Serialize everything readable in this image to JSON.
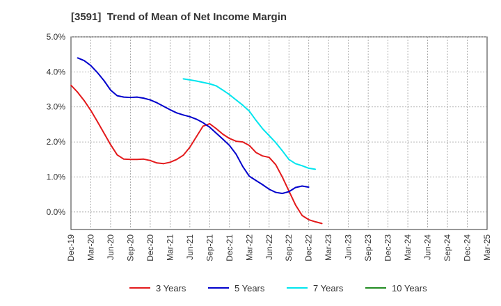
{
  "chart_data": {
    "type": "line",
    "title": "[3591]  Trend of Mean of Net Income Margin",
    "xlabel": "",
    "ylabel": "",
    "x_ticks": [
      "Dec-19",
      "Mar-20",
      "Jun-20",
      "Sep-20",
      "Dec-20",
      "Mar-21",
      "Jun-21",
      "Sep-21",
      "Dec-21",
      "Mar-22",
      "Jun-22",
      "Sep-22",
      "Dec-22",
      "Mar-23",
      "Jun-23",
      "Sep-23",
      "Dec-23",
      "Mar-24",
      "Jun-24",
      "Sep-24",
      "Dec-24",
      "Mar-25"
    ],
    "y_ticks": [
      "5.0%",
      "4.0%",
      "3.0%",
      "2.0%",
      "1.0%",
      "0.0%"
    ],
    "ylim": [
      -0.5,
      5.0
    ],
    "grid": true,
    "legend_position": "bottom",
    "series": [
      {
        "name": "3 Years",
        "color": "#e31a1c",
        "values": [
          3.62,
          3.42,
          3.18,
          2.9,
          2.58,
          2.25,
          1.92,
          1.63,
          1.51,
          1.5,
          1.5,
          1.51,
          1.47,
          1.4,
          1.38,
          1.42,
          1.5,
          1.62,
          1.85,
          2.15,
          2.45,
          2.52,
          2.38,
          2.22,
          2.1,
          2.02,
          2.0,
          1.9,
          1.7,
          1.6,
          1.56,
          1.35,
          1.0,
          0.6,
          0.2,
          -0.1,
          -0.22,
          -0.28,
          -0.33
        ]
      },
      {
        "name": "5 Years",
        "color": "#0000cc",
        "values": [
          null,
          4.4,
          4.32,
          4.18,
          3.98,
          3.75,
          3.48,
          3.32,
          3.28,
          3.27,
          3.28,
          3.25,
          3.2,
          3.12,
          3.02,
          2.92,
          2.83,
          2.77,
          2.72,
          2.65,
          2.55,
          2.42,
          2.25,
          2.08,
          1.9,
          1.65,
          1.3,
          1.02,
          0.9,
          0.78,
          0.65,
          0.56,
          0.53,
          0.58,
          0.7,
          0.74,
          0.71
        ]
      },
      {
        "name": "7 Years",
        "color": "#00e5ee",
        "values": [
          null,
          null,
          null,
          null,
          null,
          null,
          null,
          null,
          null,
          null,
          null,
          null,
          null,
          null,
          null,
          null,
          null,
          3.8,
          3.77,
          3.74,
          3.7,
          3.66,
          3.6,
          3.48,
          3.35,
          3.2,
          3.05,
          2.88,
          2.62,
          2.38,
          2.18,
          1.98,
          1.75,
          1.5,
          1.38,
          1.32,
          1.25,
          1.22
        ]
      },
      {
        "name": "10 Years",
        "color": "#228b22",
        "values": []
      }
    ]
  }
}
